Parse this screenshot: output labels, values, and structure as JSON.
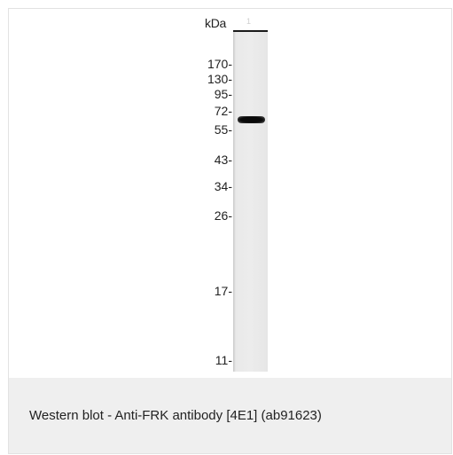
{
  "blot": {
    "unit_label": "kDa",
    "lane_label": "1",
    "markers": [
      "170-",
      "130-",
      "95-",
      "72-",
      "55-",
      "43-",
      "34-",
      "26-",
      "17-",
      "11-"
    ]
  },
  "caption": "Western blot - Anti-FRK antibody [4E1] (ab91623)"
}
